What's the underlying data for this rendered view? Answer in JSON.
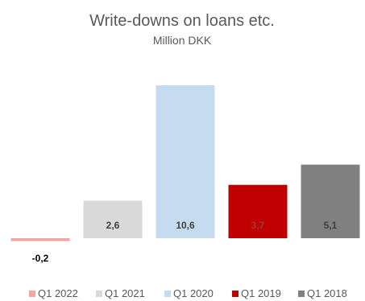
{
  "chart_data": {
    "type": "bar",
    "title": "Write-downs on loans etc.",
    "subtitle": "Million DKK",
    "categories": [
      "Q1 2022",
      "Q1 2021",
      "Q1 2020",
      "Q1 2019",
      "Q1 2018"
    ],
    "values": [
      -0.2,
      2.6,
      10.6,
      3.7,
      5.1
    ],
    "data_labels": [
      "-0,2",
      "2,6",
      "10,6",
      "3,7",
      "5,1"
    ],
    "colors": [
      "#F4A6A6",
      "#D9D9D9",
      "#C5DCF0",
      "#C00000",
      "#808080"
    ],
    "label_colors": [
      "#000000",
      "#404040",
      "#404040",
      "#9B3A3A",
      "#404040"
    ],
    "ylim": [
      -0.2,
      10.6
    ],
    "grid": false,
    "legend_position": "bottom"
  }
}
